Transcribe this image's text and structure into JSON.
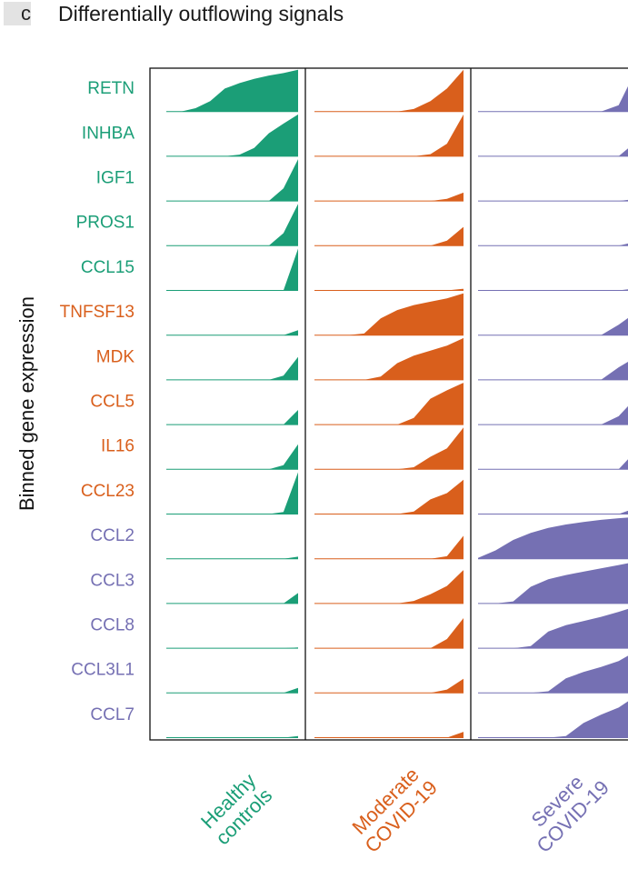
{
  "panel_letter": "c",
  "title": "Differentially outflowing signals",
  "colors": {
    "healthy": "#1b9e77",
    "moderate": "#d95f1c",
    "severe": "#7570b3",
    "frame": "#111111"
  },
  "chart_data": {
    "type": "ridgeline",
    "title": "Differentially outflowing signals",
    "ylabel": "Binned gene expression",
    "bins": 10,
    "columns": [
      {
        "key": "healthy",
        "line1": "Healthy",
        "line2": "controls"
      },
      {
        "key": "moderate",
        "line1": "Moderate",
        "line2": "COVID-19"
      },
      {
        "key": "severe",
        "line1": "Severe",
        "line2": "COVID-19"
      }
    ],
    "genes": [
      {
        "name": "RETN",
        "group": "healthy",
        "values": [
          [
            0,
            0,
            0.08,
            0.25,
            0.55,
            0.68,
            0.78,
            0.86,
            0.92,
            1.0
          ],
          [
            0,
            0,
            0,
            0,
            0,
            0,
            0.06,
            0.25,
            0.55,
            1.0
          ],
          [
            0,
            0,
            0,
            0,
            0,
            0,
            0,
            0,
            0.15,
            1.0
          ]
        ]
      },
      {
        "name": "INHBA",
        "group": "healthy",
        "values": [
          [
            0,
            0,
            0,
            0,
            0,
            0.04,
            0.2,
            0.55,
            0.78,
            1.0
          ],
          [
            0,
            0,
            0,
            0,
            0,
            0,
            0,
            0.05,
            0.3,
            1.0
          ],
          [
            0,
            0,
            0,
            0,
            0,
            0,
            0,
            0,
            0,
            0.35
          ]
        ]
      },
      {
        "name": "IGF1",
        "group": "healthy",
        "values": [
          [
            0,
            0,
            0,
            0,
            0,
            0,
            0,
            0,
            0.3,
            1.0
          ],
          [
            0,
            0,
            0,
            0,
            0,
            0,
            0,
            0,
            0.05,
            0.2
          ],
          [
            0,
            0,
            0,
            0,
            0,
            0,
            0,
            0,
            0,
            0.05
          ]
        ]
      },
      {
        "name": "PROS1",
        "group": "healthy",
        "values": [
          [
            0,
            0,
            0,
            0,
            0,
            0,
            0,
            0,
            0.3,
            1.0
          ],
          [
            0,
            0,
            0,
            0,
            0,
            0,
            0,
            0,
            0.12,
            0.45
          ],
          [
            0,
            0,
            0,
            0,
            0,
            0,
            0,
            0,
            0,
            0.1
          ]
        ]
      },
      {
        "name": "CCL15",
        "group": "healthy",
        "values": [
          [
            0,
            0,
            0,
            0,
            0,
            0,
            0,
            0,
            0,
            1.0
          ],
          [
            0,
            0,
            0,
            0,
            0,
            0,
            0,
            0,
            0,
            0.04
          ],
          [
            0,
            0,
            0,
            0,
            0,
            0,
            0,
            0,
            0,
            0.05
          ]
        ]
      },
      {
        "name": "TNFSF13",
        "group": "moderate",
        "values": [
          [
            0,
            0,
            0,
            0,
            0,
            0,
            0,
            0,
            0,
            0.12
          ],
          [
            0,
            0,
            0,
            0.04,
            0.4,
            0.6,
            0.72,
            0.8,
            0.88,
            1.0
          ],
          [
            0,
            0,
            0,
            0,
            0,
            0,
            0,
            0,
            0.25,
            0.55
          ]
        ]
      },
      {
        "name": "MDK",
        "group": "moderate",
        "values": [
          [
            0,
            0,
            0,
            0,
            0,
            0,
            0,
            0,
            0.1,
            0.55
          ],
          [
            0,
            0,
            0,
            0,
            0.08,
            0.4,
            0.58,
            0.7,
            0.82,
            1.0
          ],
          [
            0,
            0,
            0,
            0,
            0,
            0,
            0,
            0,
            0.3,
            0.55
          ]
        ]
      },
      {
        "name": "CCL5",
        "group": "moderate",
        "values": [
          [
            0,
            0,
            0,
            0,
            0,
            0,
            0,
            0,
            0,
            0.35
          ],
          [
            0,
            0,
            0,
            0,
            0,
            0,
            0.16,
            0.62,
            0.82,
            1.0
          ],
          [
            0,
            0,
            0,
            0,
            0,
            0,
            0,
            0,
            0.2,
            0.65
          ]
        ]
      },
      {
        "name": "IL16",
        "group": "moderate",
        "values": [
          [
            0,
            0,
            0,
            0,
            0,
            0,
            0,
            0,
            0.1,
            0.6
          ],
          [
            0,
            0,
            0,
            0,
            0,
            0,
            0.05,
            0.3,
            0.5,
            1.0
          ],
          [
            0,
            0,
            0,
            0,
            0,
            0,
            0,
            0,
            0,
            0.45
          ]
        ]
      },
      {
        "name": "CCL23",
        "group": "moderate",
        "values": [
          [
            0,
            0,
            0,
            0,
            0,
            0,
            0,
            0,
            0.05,
            1.0
          ],
          [
            0,
            0,
            0,
            0,
            0,
            0,
            0.06,
            0.35,
            0.5,
            0.82
          ],
          [
            0,
            0,
            0,
            0,
            0,
            0,
            0,
            0,
            0,
            0.15
          ]
        ]
      },
      {
        "name": "CCL2",
        "group": "severe",
        "values": [
          [
            0,
            0,
            0,
            0,
            0,
            0,
            0,
            0,
            0,
            0.05
          ],
          [
            0,
            0,
            0,
            0,
            0,
            0,
            0,
            0,
            0.06,
            0.55
          ],
          [
            0.02,
            0.2,
            0.45,
            0.62,
            0.74,
            0.82,
            0.88,
            0.93,
            0.97,
            1.0
          ]
        ]
      },
      {
        "name": "CCL3",
        "group": "severe",
        "values": [
          [
            0,
            0,
            0,
            0,
            0,
            0,
            0,
            0,
            0,
            0.25
          ],
          [
            0,
            0,
            0,
            0,
            0,
            0,
            0.06,
            0.22,
            0.42,
            0.8
          ],
          [
            0,
            0,
            0.05,
            0.4,
            0.58,
            0.68,
            0.76,
            0.84,
            0.92,
            1.0
          ]
        ]
      },
      {
        "name": "CCL8",
        "group": "severe",
        "values": [
          [
            0,
            0,
            0,
            0,
            0,
            0,
            0,
            0,
            0,
            0.02
          ],
          [
            0,
            0,
            0,
            0,
            0,
            0,
            0,
            0,
            0.22,
            0.72
          ],
          [
            0,
            0,
            0,
            0.05,
            0.4,
            0.55,
            0.65,
            0.75,
            0.87,
            1.0
          ]
        ]
      },
      {
        "name": "CCL3L1",
        "group": "severe",
        "values": [
          [
            0,
            0,
            0,
            0,
            0,
            0,
            0,
            0,
            0,
            0.12
          ],
          [
            0,
            0,
            0,
            0,
            0,
            0,
            0,
            0,
            0.08,
            0.34
          ],
          [
            0,
            0,
            0,
            0,
            0.04,
            0.35,
            0.5,
            0.62,
            0.76,
            1.0
          ]
        ]
      },
      {
        "name": "CCL7",
        "group": "severe",
        "values": [
          [
            0,
            0,
            0,
            0,
            0,
            0,
            0,
            0,
            0,
            0.04
          ],
          [
            0,
            0,
            0,
            0,
            0,
            0,
            0,
            0,
            0,
            0.14
          ],
          [
            0,
            0,
            0,
            0,
            0,
            0.04,
            0.35,
            0.55,
            0.72,
            1.0
          ]
        ]
      }
    ]
  }
}
